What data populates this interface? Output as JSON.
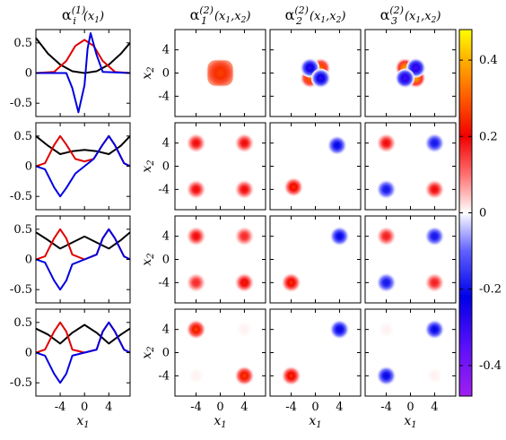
{
  "chart_data": [
    {
      "type": "line",
      "title": "αi(1)(x1)",
      "title_parts": {
        "symbol": "α",
        "sub": "i",
        "sup": "(1)",
        "args": "(x1)"
      },
      "xlabel": "x1",
      "xticks": [
        "-4",
        "0",
        "4"
      ],
      "yticks": [
        "0.5",
        "0",
        "-0.5"
      ],
      "xlim": [
        -8,
        7.5
      ],
      "ylim": [
        -0.72,
        0.72
      ],
      "grid": false,
      "rows": [
        {
          "series": [
            {
              "color": "#000000",
              "description": "harmonic well",
              "points": [
                [
                  -8,
                  0.58
                ],
                [
                  -6,
                  0.32
                ],
                [
                  -4,
                  0.14
                ],
                [
                  -2,
                  0.03
                ],
                [
                  0,
                  0
                ],
                [
                  2,
                  0.03
                ],
                [
                  4,
                  0.14
                ],
                [
                  6,
                  0.32
                ],
                [
                  7.5,
                  0.5
                ]
              ]
            },
            {
              "color": "#e00000",
              "points": [
                [
                  -8,
                  0
                ],
                [
                  -5,
                  0.02
                ],
                [
                  -3,
                  0.2
                ],
                [
                  -1.5,
                  0.45
                ],
                [
                  0,
                  0.55
                ],
                [
                  1.5,
                  0.45
                ],
                [
                  3,
                  0.2
                ],
                [
                  5,
                  0.02
                ],
                [
                  7.5,
                  0
                ]
              ]
            },
            {
              "color": "#0000e0",
              "points": [
                [
                  -8,
                  0
                ],
                [
                  -3,
                  0
                ],
                [
                  -2,
                  -0.25
                ],
                [
                  -1,
                  -0.65
                ],
                [
                  0,
                  -0.2
                ],
                [
                  0.5,
                  0.4
                ],
                [
                  1,
                  0.66
                ],
                [
                  2,
                  0.3
                ],
                [
                  3,
                  0.02
                ],
                [
                  7.5,
                  0
                ]
              ]
            }
          ]
        },
        {
          "series": [
            {
              "color": "#000000",
              "points": [
                [
                  -8,
                  0.5
                ],
                [
                  -6,
                  0.34
                ],
                [
                  -4,
                  0.2
                ],
                [
                  -2,
                  0.25
                ],
                [
                  0,
                  0.27
                ],
                [
                  2,
                  0.25
                ],
                [
                  4,
                  0.2
                ],
                [
                  6,
                  0.34
                ],
                [
                  7.5,
                  0.5
                ]
              ]
            },
            {
              "color": "#e00000",
              "points": [
                [
                  -8,
                  0
                ],
                [
                  -6.5,
                  0.05
                ],
                [
                  -5,
                  0.35
                ],
                [
                  -4,
                  0.5
                ],
                [
                  -3,
                  0.36
                ],
                [
                  -1.5,
                  0.12
                ],
                [
                  0,
                  0.08
                ],
                [
                  1.5,
                  0.12
                ],
                [
                  3,
                  0.36
                ],
                [
                  4,
                  0.5
                ],
                [
                  5,
                  0.35
                ],
                [
                  6.5,
                  0.05
                ],
                [
                  7.5,
                  0
                ]
              ]
            },
            {
              "color": "#0000e0",
              "points": [
                [
                  -8,
                  0
                ],
                [
                  -6.5,
                  -0.05
                ],
                [
                  -5,
                  -0.35
                ],
                [
                  -4,
                  -0.5
                ],
                [
                  -3,
                  -0.36
                ],
                [
                  -1.5,
                  -0.12
                ],
                [
                  0,
                  0
                ],
                [
                  1.5,
                  0.12
                ],
                [
                  3,
                  0.36
                ],
                [
                  4,
                  0.5
                ],
                [
                  5,
                  0.35
                ],
                [
                  6.5,
                  0.05
                ],
                [
                  7.5,
                  0
                ]
              ]
            }
          ]
        },
        {
          "series": [
            {
              "color": "#000000",
              "points": [
                [
                  -8,
                  0.45
                ],
                [
                  -6,
                  0.32
                ],
                [
                  -4,
                  0.18
                ],
                [
                  -2,
                  0.28
                ],
                [
                  0,
                  0.38
                ],
                [
                  2,
                  0.28
                ],
                [
                  4,
                  0.18
                ],
                [
                  6,
                  0.32
                ],
                [
                  7.5,
                  0.45
                ]
              ]
            },
            {
              "color": "#e00000",
              "points": [
                [
                  -8,
                  0
                ],
                [
                  -6.5,
                  0.05
                ],
                [
                  -5,
                  0.35
                ],
                [
                  -4,
                  0.5
                ],
                [
                  -3,
                  0.35
                ],
                [
                  -2,
                  0.08
                ],
                [
                  0,
                  0
                ],
                [
                  2,
                  0.08
                ],
                [
                  3,
                  0.35
                ],
                [
                  4,
                  0.5
                ],
                [
                  5,
                  0.35
                ],
                [
                  6.5,
                  0.05
                ],
                [
                  7.5,
                  0
                ]
              ]
            },
            {
              "color": "#0000e0",
              "points": [
                [
                  -8,
                  0
                ],
                [
                  -6.5,
                  -0.05
                ],
                [
                  -5,
                  -0.35
                ],
                [
                  -4,
                  -0.5
                ],
                [
                  -3,
                  -0.35
                ],
                [
                  -2,
                  -0.08
                ],
                [
                  0,
                  0
                ],
                [
                  2,
                  0.08
                ],
                [
                  3,
                  0.35
                ],
                [
                  4,
                  0.5
                ],
                [
                  5,
                  0.35
                ],
                [
                  6.5,
                  0.05
                ],
                [
                  7.5,
                  0
                ]
              ]
            }
          ]
        },
        {
          "series": [
            {
              "color": "#000000",
              "points": [
                [
                  -8,
                  0.4
                ],
                [
                  -6,
                  0.3
                ],
                [
                  -4,
                  0.15
                ],
                [
                  -2,
                  0.33
                ],
                [
                  0,
                  0.46
                ],
                [
                  2,
                  0.33
                ],
                [
                  4,
                  0.15
                ],
                [
                  6,
                  0.3
                ],
                [
                  7.5,
                  0.4
                ]
              ]
            },
            {
              "color": "#e00000",
              "points": [
                [
                  -8,
                  0
                ],
                [
                  -6.5,
                  0.05
                ],
                [
                  -5,
                  0.35
                ],
                [
                  -4,
                  0.5
                ],
                [
                  -3,
                  0.35
                ],
                [
                  -2,
                  0.05
                ],
                [
                  0,
                  0
                ],
                [
                  2,
                  0.05
                ],
                [
                  3,
                  0.35
                ],
                [
                  4,
                  0.5
                ],
                [
                  5,
                  0.35
                ],
                [
                  6.5,
                  0.05
                ],
                [
                  7.5,
                  0
                ]
              ]
            },
            {
              "color": "#0000e0",
              "points": [
                [
                  -8,
                  0
                ],
                [
                  -6.5,
                  -0.05
                ],
                [
                  -5,
                  -0.35
                ],
                [
                  -4,
                  -0.5
                ],
                [
                  -3,
                  -0.35
                ],
                [
                  -2,
                  -0.05
                ],
                [
                  0,
                  0
                ],
                [
                  2,
                  0.05
                ],
                [
                  3,
                  0.35
                ],
                [
                  4,
                  0.5
                ],
                [
                  5,
                  0.35
                ],
                [
                  6.5,
                  0.05
                ],
                [
                  7.5,
                  0
                ]
              ]
            }
          ]
        }
      ]
    },
    {
      "type": "heatmap",
      "titles": [
        {
          "symbol": "α",
          "sub": "1",
          "sup": "(2)",
          "args": "(x1,x2)"
        },
        {
          "symbol": "α",
          "sub": "2",
          "sup": "(2)",
          "args": "(x1,x2)"
        },
        {
          "symbol": "α",
          "sub": "3",
          "sup": "(2)",
          "args": "(x1,x2)"
        }
      ],
      "xlabel": "x1",
      "ylabel": "x2",
      "xticks": [
        "-4",
        "0",
        "4"
      ],
      "yticks": [
        "4",
        "0",
        "-4"
      ],
      "xlim": [
        -7.5,
        7.5
      ],
      "ylim": [
        -7.5,
        7.5
      ],
      "grid": false,
      "grid_cells": [
        [
          {
            "blobs": [
              {
                "x": 0,
                "y": 0,
                "w": 0.28,
                "kind": "square"
              }
            ]
          },
          {
            "blobs": [
              {
                "x": -0.9,
                "y": -0.9,
                "w": 0.32
              },
              {
                "x": 0.9,
                "y": 0.9,
                "w": 0.32
              },
              {
                "x": -0.9,
                "y": 0.9,
                "w": -0.28
              },
              {
                "x": 0.9,
                "y": -0.9,
                "w": -0.28
              }
            ]
          },
          {
            "blobs": [
              {
                "x": -0.9,
                "y": 0.9,
                "w": 0.38
              },
              {
                "x": 0.9,
                "y": -0.9,
                "w": 0.38
              },
              {
                "x": 0.9,
                "y": 0.9,
                "w": -0.32
              },
              {
                "x": -0.9,
                "y": -0.9,
                "w": -0.32
              }
            ]
          }
        ],
        [
          {
            "blobs": [
              {
                "x": -4,
                "y": 4,
                "w": 0.2
              },
              {
                "x": 4,
                "y": 4,
                "w": 0.2
              },
              {
                "x": -4,
                "y": -4,
                "w": 0.2
              },
              {
                "x": 4,
                "y": -4,
                "w": 0.2
              }
            ]
          },
          {
            "blobs": [
              {
                "x": 3.6,
                "y": 3.6,
                "w": -0.22
              },
              {
                "x": -3.6,
                "y": -3.6,
                "w": 0.25
              }
            ]
          },
          {
            "blobs": [
              {
                "x": -4,
                "y": 4,
                "w": 0.2
              },
              {
                "x": 4,
                "y": -4,
                "w": 0.2
              },
              {
                "x": 4,
                "y": 4,
                "w": -0.2
              },
              {
                "x": -4,
                "y": -4,
                "w": -0.2
              }
            ]
          }
        ],
        [
          {
            "blobs": [
              {
                "x": -4,
                "y": 4,
                "w": 0.2
              },
              {
                "x": 4,
                "y": 4,
                "w": 0.17
              },
              {
                "x": -4,
                "y": -4,
                "w": 0.17
              },
              {
                "x": 4,
                "y": -4,
                "w": 0.22
              }
            ]
          },
          {
            "blobs": [
              {
                "x": 4,
                "y": 4,
                "w": -0.22
              },
              {
                "x": -4,
                "y": -4,
                "w": 0.25
              }
            ]
          },
          {
            "blobs": [
              {
                "x": -4,
                "y": 4,
                "w": 0.18
              },
              {
                "x": 4,
                "y": -4,
                "w": 0.18
              },
              {
                "x": 4,
                "y": 4,
                "w": -0.2
              },
              {
                "x": -4,
                "y": -4,
                "w": -0.2
              }
            ]
          }
        ],
        [
          {
            "blobs": [
              {
                "x": -4,
                "y": 4,
                "w": 0.27
              },
              {
                "x": 4,
                "y": -4,
                "w": 0.27
              },
              {
                "x": 4,
                "y": 4,
                "w": 0.01
              },
              {
                "x": -4,
                "y": -4,
                "w": 0.01
              }
            ]
          },
          {
            "blobs": [
              {
                "x": 4,
                "y": 4,
                "w": -0.23
              },
              {
                "x": -4,
                "y": -4,
                "w": 0.25
              }
            ]
          },
          {
            "blobs": [
              {
                "x": 4,
                "y": 4,
                "w": -0.22
              },
              {
                "x": -4,
                "y": -4,
                "w": -0.22
              },
              {
                "x": -4,
                "y": 4,
                "w": 0.01
              },
              {
                "x": 4,
                "y": -4,
                "w": 0.01
              }
            ]
          }
        ]
      ],
      "colorbar": {
        "range": [
          -0.48,
          0.48
        ],
        "ticks": [
          "0.4",
          "0.2",
          "0",
          "-0.2",
          "-0.4"
        ],
        "tick_values": [
          0.4,
          0.2,
          0,
          -0.2,
          -0.4
        ],
        "colors": [
          [
            -0.48,
            "#a020f0"
          ],
          [
            -0.35,
            "#5a10f8"
          ],
          [
            -0.22,
            "#0000e6"
          ],
          [
            -0.1,
            "#6060ff"
          ],
          [
            0,
            "#ffffff"
          ],
          [
            0.1,
            "#ff7070"
          ],
          [
            0.2,
            "#f00000"
          ],
          [
            0.3,
            "#ff5a00"
          ],
          [
            0.4,
            "#ffb000"
          ],
          [
            0.48,
            "#ffff00"
          ]
        ]
      }
    }
  ]
}
